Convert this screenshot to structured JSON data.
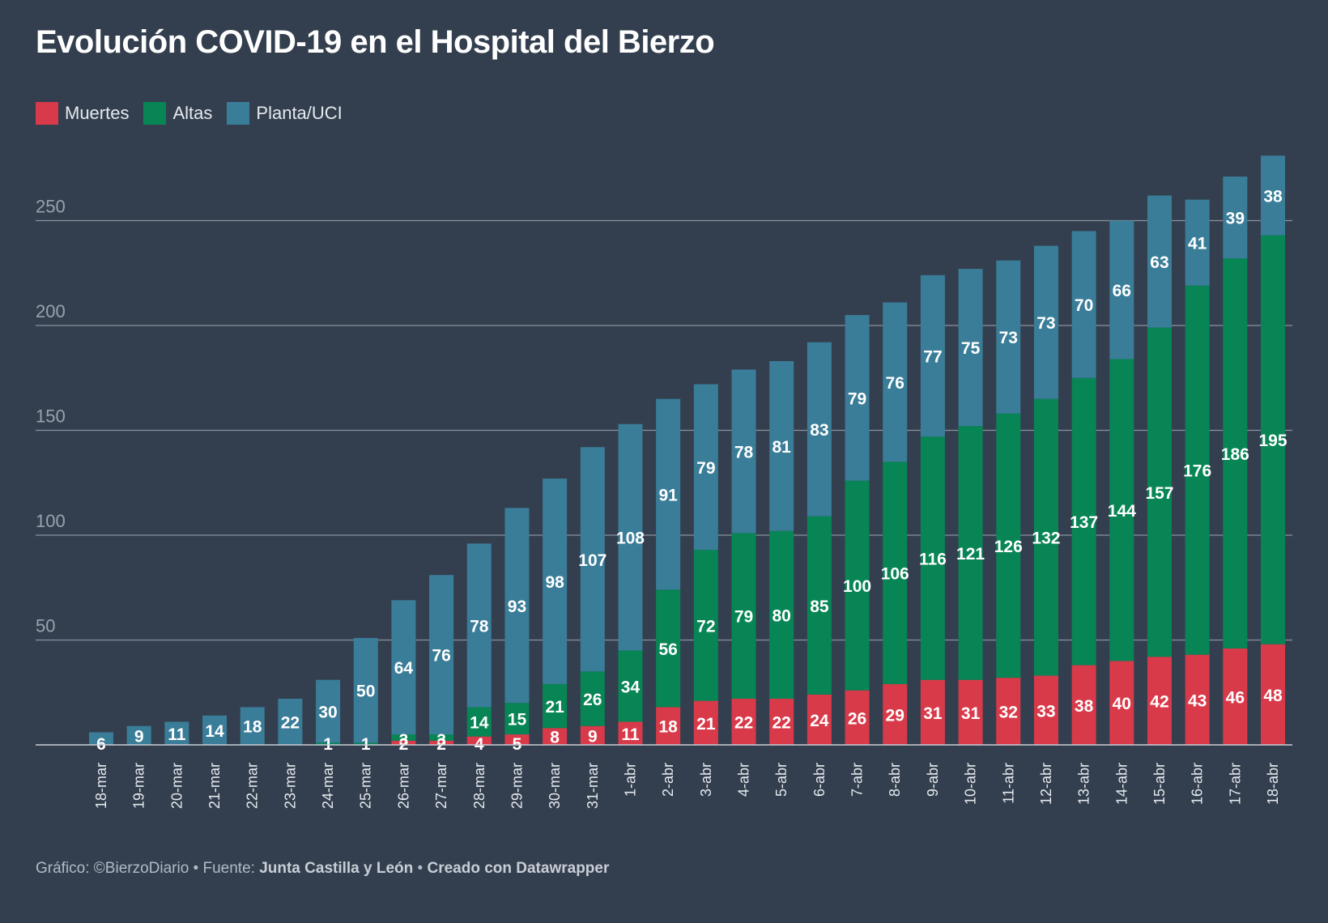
{
  "title": "Evolución COVID-19 en el Hospital del Bierzo",
  "footer": {
    "prefix": "Gráfico: ©BierzoDiario • Fuente: ",
    "source": "Junta Castilla y León",
    "sep": " • ",
    "created": "Creado con Datawrapper"
  },
  "colors": {
    "background": "#333f4f",
    "muertes": "#d93a4a",
    "altas": "#078555",
    "planta": "#3a7d98",
    "grid": "#8a919c",
    "tick": "#9aa1ab"
  },
  "chart_data": {
    "type": "bar",
    "stacked": true,
    "title": "Evolución COVID-19 en el Hospital del Bierzo",
    "xlabel": "",
    "ylabel": "",
    "ylim": [
      0,
      280
    ],
    "yticks": [
      50,
      100,
      150,
      200,
      250
    ],
    "grid": true,
    "legend_position": "top-left",
    "categories": [
      "18-mar",
      "19-mar",
      "20-mar",
      "21-mar",
      "22-mar",
      "23-mar",
      "24-mar",
      "25-mar",
      "26-mar",
      "27-mar",
      "28-mar",
      "29-mar",
      "30-mar",
      "31-mar",
      "1-abr",
      "2-abr",
      "3-abr",
      "4-abr",
      "5-abr",
      "6-abr",
      "7-abr",
      "8-abr",
      "9-abr",
      "10-abr",
      "11-abr",
      "12-abr",
      "13-abr",
      "14-abr",
      "15-abr",
      "16-abr",
      "17-abr",
      "18-abr"
    ],
    "series": [
      {
        "name": "Muertes",
        "color": "#d93a4a",
        "values": [
          0,
          0,
          0,
          0,
          0,
          0,
          0,
          0,
          2,
          2,
          4,
          5,
          8,
          9,
          11,
          18,
          21,
          22,
          22,
          24,
          26,
          29,
          31,
          31,
          32,
          33,
          38,
          40,
          42,
          43,
          46,
          48
        ]
      },
      {
        "name": "Altas",
        "color": "#078555",
        "values": [
          0,
          0,
          0,
          0,
          0,
          0,
          1,
          1,
          3,
          3,
          14,
          15,
          21,
          26,
          34,
          56,
          72,
          79,
          80,
          85,
          100,
          106,
          116,
          121,
          126,
          132,
          137,
          144,
          157,
          176,
          186,
          195
        ]
      },
      {
        "name": "Planta/UCI",
        "color": "#3a7d98",
        "values": [
          6,
          9,
          11,
          14,
          18,
          22,
          30,
          50,
          64,
          76,
          78,
          93,
          98,
          107,
          108,
          91,
          79,
          78,
          81,
          83,
          79,
          76,
          77,
          75,
          73,
          73,
          70,
          66,
          63,
          41,
          39,
          38
        ]
      }
    ]
  }
}
